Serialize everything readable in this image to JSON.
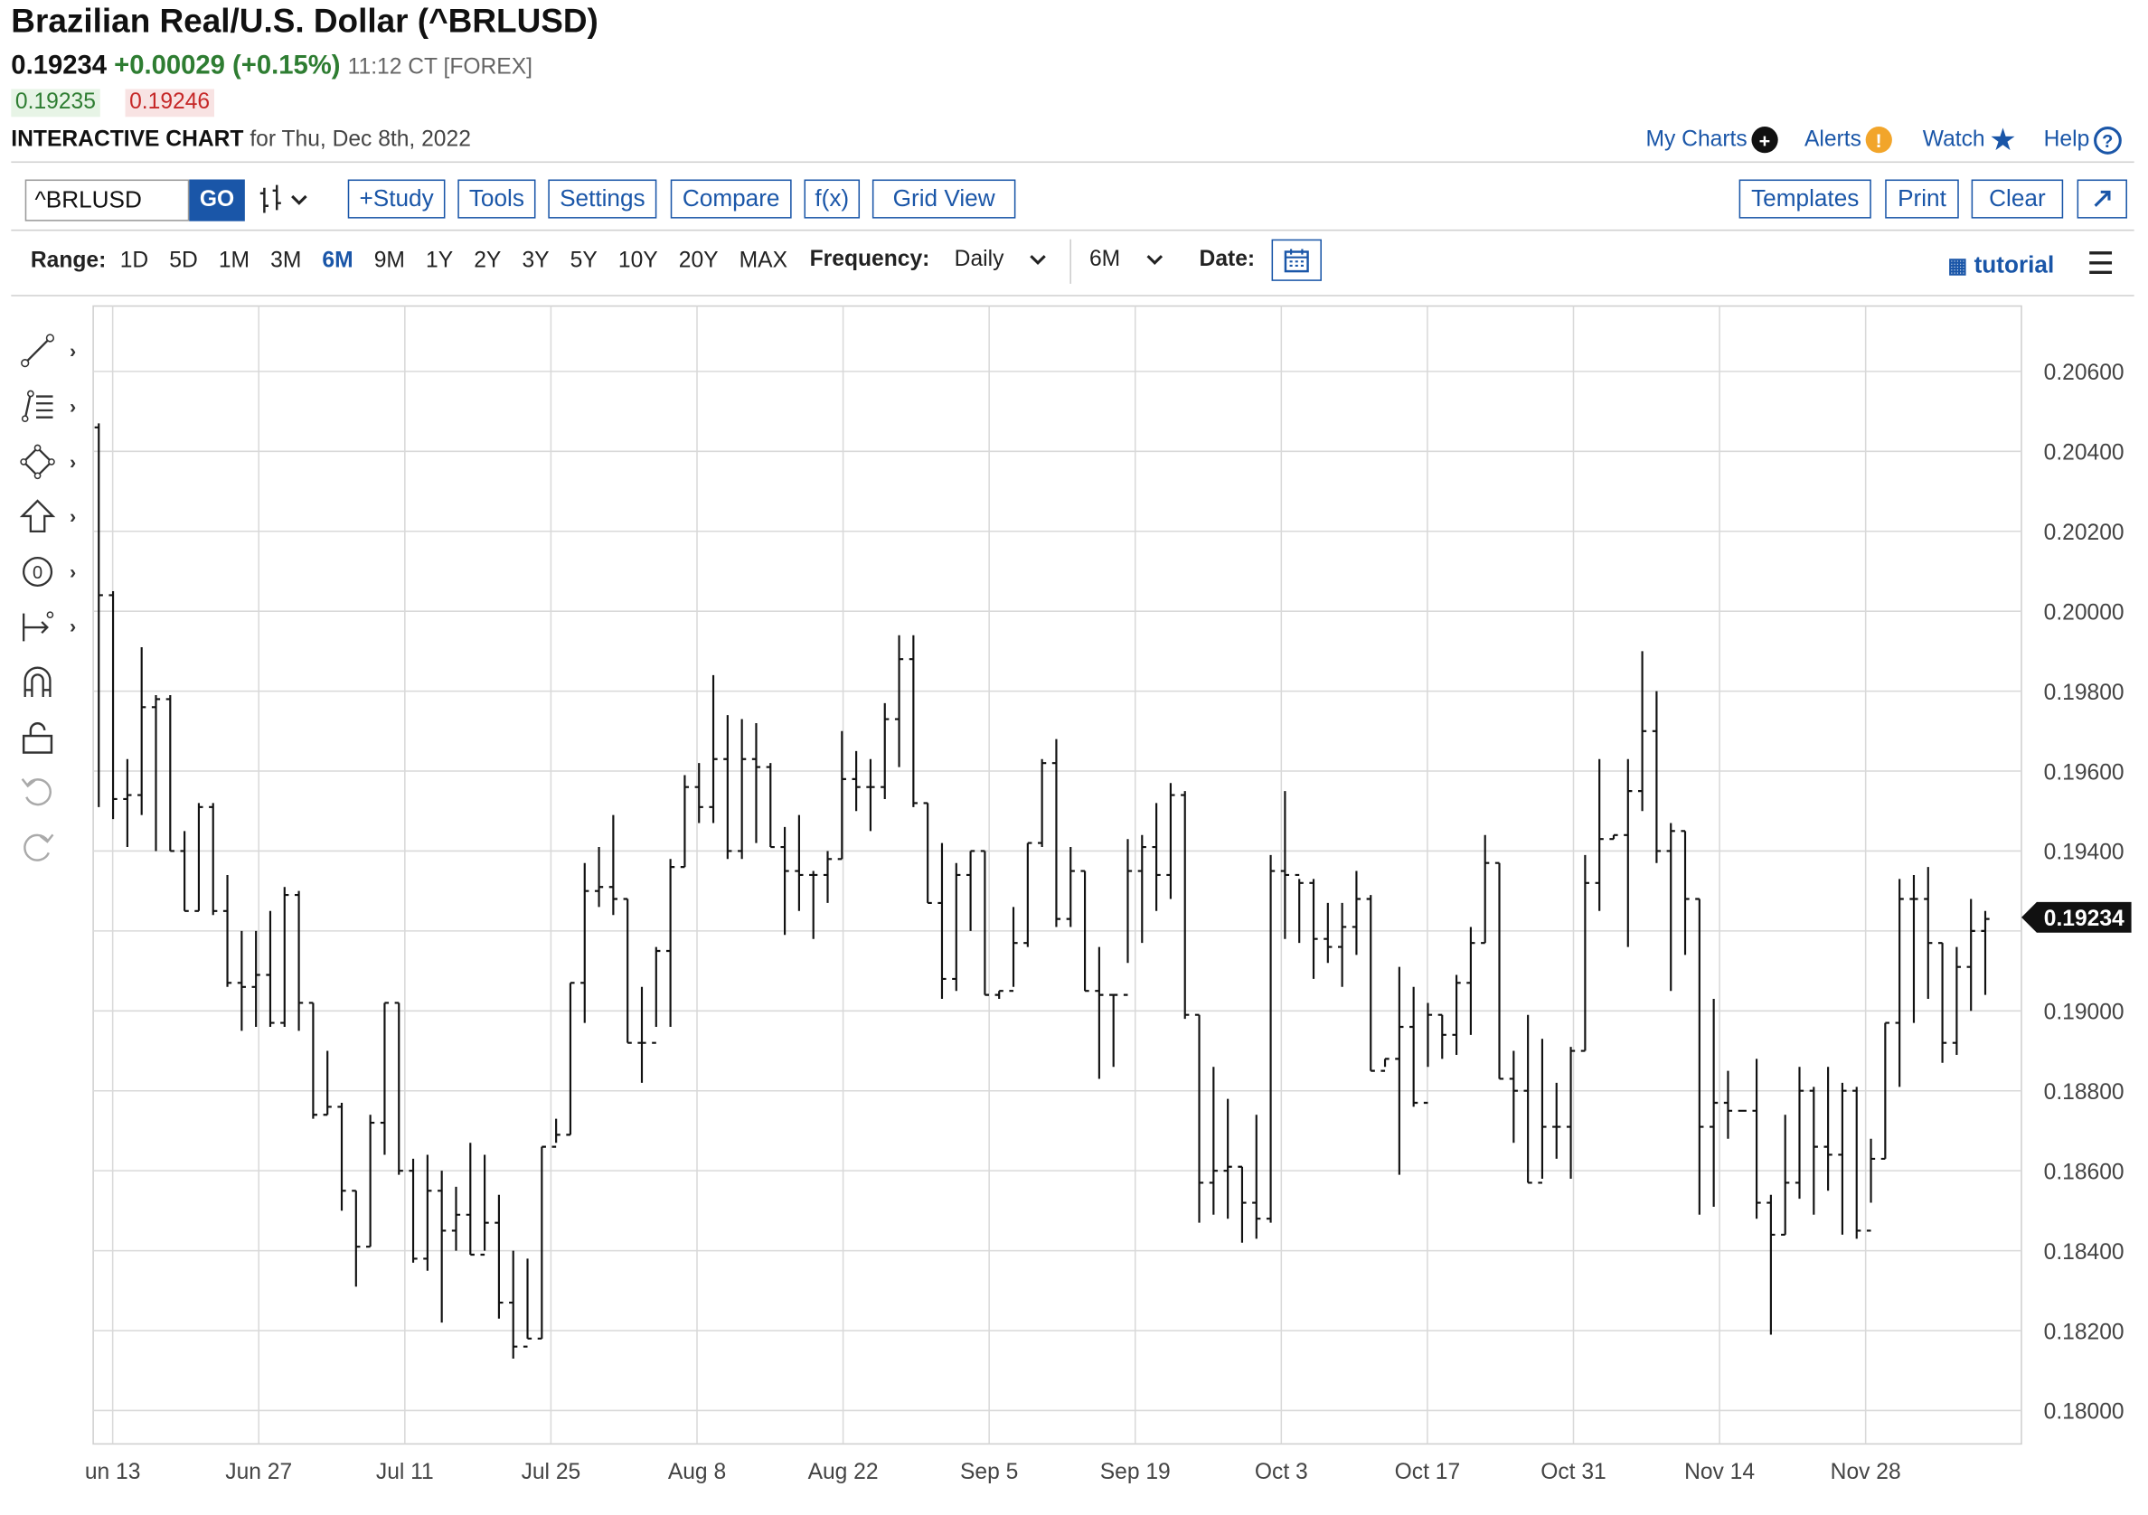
{
  "header": {
    "title": "Brazilian Real/U.S. Dollar (^BRLUSD)",
    "last": "0.19234",
    "change": "+0.00029 (+0.15%)",
    "time": "11:12 CT [FOREX]",
    "bid": "0.19235",
    "ask": "0.19246",
    "chart_label": "INTERACTIVE CHART",
    "chart_date": "for Thu, Dec 8th, 2022"
  },
  "top_links": {
    "my_charts": "My Charts",
    "alerts": "Alerts",
    "watch": "Watch",
    "help": "Help"
  },
  "toolbar": {
    "symbol_value": "^BRLUSD",
    "go": "GO",
    "study": "+Study",
    "tools": "Tools",
    "settings": "Settings",
    "compare": "Compare",
    "fx": "f(x)",
    "grid_view": "Grid View",
    "templates": "Templates",
    "print": "Print",
    "clear": "Clear",
    "expand_icon": "expand-icon"
  },
  "range": {
    "label": "Range:",
    "options": [
      "1D",
      "5D",
      "1M",
      "3M",
      "6M",
      "9M",
      "1Y",
      "2Y",
      "3Y",
      "5Y",
      "10Y",
      "20Y",
      "MAX"
    ],
    "selected": "6M",
    "frequency_label": "Frequency:",
    "frequency_value": "Daily",
    "period_value": "6M",
    "date_label": "Date:",
    "tutorial": "tutorial"
  },
  "left_tools": [
    "line-draw-icon",
    "fib-icon",
    "shape-icon",
    "arrow-up-icon",
    "number-icon",
    "measure-icon",
    "magnet-icon",
    "unlock-icon",
    "undo-icon",
    "redo-icon"
  ],
  "colors": {
    "accent": "#1a56a8",
    "positive": "#2e7d32",
    "negative": "#c62828",
    "bar": "#111111",
    "grid": "#d9d9d9"
  },
  "chart_data": {
    "type": "ohlc",
    "title": "Brazilian Real/U.S. Dollar (^BRLUSD)",
    "frequency": "Daily",
    "ylim": [
      0.1795,
      0.2077
    ],
    "y_ticks": [
      0.206,
      0.204,
      0.202,
      0.2,
      0.198,
      0.196,
      0.194,
      0.19,
      0.188,
      0.186,
      0.184,
      0.182,
      0.18
    ],
    "y_tick_labels": [
      "0.20600",
      "0.20400",
      "0.20200",
      "0.20000",
      "0.19800",
      "0.19600",
      "0.19400",
      "0.19000",
      "0.18800",
      "0.18600",
      "0.18400",
      "0.18200",
      "0.18000"
    ],
    "x_tick_labels": [
      "un 13",
      "Jun 27",
      "Jul 11",
      "Jul 25",
      "Aug 8",
      "Aug 22",
      "Sep 5",
      "Sep 19",
      "Oct 3",
      "Oct 17",
      "Oct 31",
      "Nov 14",
      "Nov 28"
    ],
    "last_value_label": "0.19234",
    "grid": true,
    "bars": [
      [
        0.2046,
        0.2047,
        0.1951,
        0.2004
      ],
      [
        0.2004,
        0.2005,
        0.1948,
        0.1953
      ],
      [
        0.1953,
        0.1963,
        0.1941,
        0.1954
      ],
      [
        0.1954,
        0.1991,
        0.1949,
        0.1976
      ],
      [
        0.1976,
        0.1979,
        0.194,
        0.1978
      ],
      [
        0.1978,
        0.1979,
        0.194,
        0.194
      ],
      [
        0.194,
        0.1945,
        0.1925,
        0.1925
      ],
      [
        0.1925,
        0.1952,
        0.1925,
        0.1951
      ],
      [
        0.1951,
        0.1952,
        0.1924,
        0.1925
      ],
      [
        0.1925,
        0.1934,
        0.1906,
        0.1907
      ],
      [
        0.1907,
        0.192,
        0.1895,
        0.1906
      ],
      [
        0.1906,
        0.192,
        0.1896,
        0.1909
      ],
      [
        0.1909,
        0.1925,
        0.1896,
        0.1897
      ],
      [
        0.1897,
        0.1931,
        0.1896,
        0.1929
      ],
      [
        0.1929,
        0.193,
        0.1895,
        0.1902
      ],
      [
        0.1902,
        0.1902,
        0.1873,
        0.1874
      ],
      [
        0.1874,
        0.189,
        0.1874,
        0.1876
      ],
      [
        0.1876,
        0.1877,
        0.185,
        0.1855
      ],
      [
        0.1855,
        0.1855,
        0.1831,
        0.1841
      ],
      [
        0.1841,
        0.1874,
        0.1841,
        0.1872
      ],
      [
        0.1872,
        0.1902,
        0.1864,
        0.1902
      ],
      [
        0.1902,
        0.1902,
        0.1859,
        0.186
      ],
      [
        0.186,
        0.1863,
        0.1837,
        0.1838
      ],
      [
        0.1838,
        0.1864,
        0.1835,
        0.1855
      ],
      [
        0.1855,
        0.186,
        0.1822,
        0.1845
      ],
      [
        0.1845,
        0.1856,
        0.184,
        0.1849
      ],
      [
        0.1849,
        0.1867,
        0.1839,
        0.1839
      ],
      [
        0.1839,
        0.1864,
        0.184,
        0.1847
      ],
      [
        0.1847,
        0.1854,
        0.1823,
        0.1827
      ],
      [
        0.1827,
        0.184,
        0.1813,
        0.1816
      ],
      [
        0.1816,
        0.1838,
        0.1818,
        0.1818
      ],
      [
        0.1818,
        0.1866,
        0.1818,
        0.1866
      ],
      [
        0.1866,
        0.1873,
        0.1867,
        0.1869
      ],
      [
        0.1869,
        0.1907,
        0.1869,
        0.1907
      ],
      [
        0.1907,
        0.1937,
        0.1897,
        0.193
      ],
      [
        0.193,
        0.1941,
        0.1926,
        0.1931
      ],
      [
        0.1931,
        0.1949,
        0.1924,
        0.1928
      ],
      [
        0.1928,
        0.1928,
        0.1892,
        0.1892
      ],
      [
        0.1892,
        0.1906,
        0.1882,
        0.1892
      ],
      [
        0.1892,
        0.1916,
        0.1896,
        0.1915
      ],
      [
        0.1915,
        0.1938,
        0.1896,
        0.1936
      ],
      [
        0.1936,
        0.1959,
        0.1936,
        0.1956
      ],
      [
        0.1956,
        0.1962,
        0.1947,
        0.1951
      ],
      [
        0.1951,
        0.1984,
        0.1947,
        0.1963
      ],
      [
        0.1963,
        0.1974,
        0.1938,
        0.194
      ],
      [
        0.194,
        0.1973,
        0.1938,
        0.1963
      ],
      [
        0.1963,
        0.1972,
        0.1942,
        0.1961
      ],
      [
        0.1961,
        0.1962,
        0.1941,
        0.1941
      ],
      [
        0.1941,
        0.1946,
        0.1919,
        0.1935
      ],
      [
        0.1935,
        0.1949,
        0.1925,
        0.1934
      ],
      [
        0.1934,
        0.1935,
        0.1918,
        0.1934
      ],
      [
        0.1934,
        0.194,
        0.1927,
        0.1938
      ],
      [
        0.1938,
        0.197,
        0.1938,
        0.1958
      ],
      [
        0.1958,
        0.1965,
        0.195,
        0.1956
      ],
      [
        0.1956,
        0.1963,
        0.1945,
        0.1956
      ],
      [
        0.1956,
        0.1977,
        0.1953,
        0.1973
      ],
      [
        0.1973,
        0.1994,
        0.1961,
        0.1988
      ],
      [
        0.1988,
        0.1994,
        0.1951,
        0.1952
      ],
      [
        0.1952,
        0.1952,
        0.1927,
        0.1927
      ],
      [
        0.1927,
        0.1942,
        0.1903,
        0.1908
      ],
      [
        0.1908,
        0.1937,
        0.1905,
        0.1934
      ],
      [
        0.1934,
        0.194,
        0.192,
        0.194
      ],
      [
        0.194,
        0.194,
        0.1904,
        0.1904
      ],
      [
        0.1904,
        0.1905,
        0.1903,
        0.1905
      ],
      [
        0.1905,
        0.1926,
        0.1906,
        0.1917
      ],
      [
        0.1917,
        0.1942,
        0.1916,
        0.1942
      ],
      [
        0.1942,
        0.1963,
        0.1941,
        0.1962
      ],
      [
        0.1962,
        0.1968,
        0.1921,
        0.1923
      ],
      [
        0.1923,
        0.1941,
        0.1921,
        0.1935
      ],
      [
        0.1935,
        0.1935,
        0.1905,
        0.1905
      ],
      [
        0.1905,
        0.1916,
        0.1883,
        0.1904
      ],
      [
        0.1904,
        0.1904,
        0.1886,
        0.1904
      ],
      [
        0.1904,
        0.1943,
        0.1912,
        0.1935
      ],
      [
        0.1935,
        0.1944,
        0.1917,
        0.1941
      ],
      [
        0.1941,
        0.1952,
        0.1925,
        0.1934
      ],
      [
        0.1934,
        0.1957,
        0.1928,
        0.1954
      ],
      [
        0.1954,
        0.1955,
        0.1898,
        0.1899
      ],
      [
        0.1899,
        0.1899,
        0.1847,
        0.1857
      ],
      [
        0.1857,
        0.1886,
        0.1849,
        0.186
      ],
      [
        0.186,
        0.1878,
        0.1848,
        0.1861
      ],
      [
        0.1861,
        0.1861,
        0.1842,
        0.1852
      ],
      [
        0.1852,
        0.1874,
        0.1843,
        0.1848
      ],
      [
        0.1848,
        0.1939,
        0.1847,
        0.1935
      ],
      [
        0.1935,
        0.1955,
        0.1918,
        0.1934
      ],
      [
        0.1934,
        0.1933,
        0.1917,
        0.1932
      ],
      [
        0.1932,
        0.1933,
        0.1908,
        0.1918
      ],
      [
        0.1918,
        0.1927,
        0.1912,
        0.1916
      ],
      [
        0.1916,
        0.1927,
        0.1906,
        0.1921
      ],
      [
        0.1921,
        0.1935,
        0.1914,
        0.1928
      ],
      [
        0.1928,
        0.1929,
        0.1885,
        0.1885
      ],
      [
        0.1885,
        0.1888,
        0.1886,
        0.1888
      ],
      [
        0.1888,
        0.1911,
        0.1859,
        0.1896
      ],
      [
        0.1896,
        0.1906,
        0.1876,
        0.1877
      ],
      [
        0.1877,
        0.1902,
        0.1886,
        0.1899
      ],
      [
        0.1899,
        0.1899,
        0.1888,
        0.1894
      ],
      [
        0.1894,
        0.1909,
        0.1889,
        0.1907
      ],
      [
        0.1907,
        0.1921,
        0.1894,
        0.1917
      ],
      [
        0.1917,
        0.1944,
        0.1917,
        0.1937
      ],
      [
        0.1937,
        0.1937,
        0.1883,
        0.1883
      ],
      [
        0.1883,
        0.189,
        0.1867,
        0.188
      ],
      [
        0.188,
        0.1899,
        0.1857,
        0.1857
      ],
      [
        0.1857,
        0.1893,
        0.1858,
        0.1871
      ],
      [
        0.1871,
        0.1882,
        0.1863,
        0.1871
      ],
      [
        0.1871,
        0.1891,
        0.1858,
        0.189
      ],
      [
        0.189,
        0.1939,
        0.189,
        0.1932
      ],
      [
        0.1932,
        0.1963,
        0.1925,
        0.1943
      ],
      [
        0.1943,
        0.1944,
        0.1943,
        0.1944
      ],
      [
        0.1944,
        0.1963,
        0.1916,
        0.1955
      ],
      [
        0.1955,
        0.199,
        0.195,
        0.197
      ],
      [
        0.197,
        0.198,
        0.1937,
        0.194
      ],
      [
        0.194,
        0.1947,
        0.1905,
        0.1945
      ],
      [
        0.1945,
        0.1945,
        0.1914,
        0.1928
      ],
      [
        0.1928,
        0.1928,
        0.1849,
        0.1871
      ],
      [
        0.1871,
        0.1903,
        0.1851,
        0.1877
      ],
      [
        0.1877,
        0.1885,
        0.1868,
        0.1875
      ],
      [
        0.1875,
        0.1875,
        0.1875,
        0.1875
      ],
      [
        0.1875,
        0.1888,
        0.1848,
        0.1852
      ],
      [
        0.1852,
        0.1854,
        0.1819,
        0.1844
      ],
      [
        0.1844,
        0.1874,
        0.1844,
        0.1857
      ],
      [
        0.1857,
        0.1886,
        0.1853,
        0.188
      ],
      [
        0.188,
        0.1881,
        0.1849,
        0.1866
      ],
      [
        0.1866,
        0.1886,
        0.1855,
        0.1864
      ],
      [
        0.1864,
        0.1882,
        0.1844,
        0.188
      ],
      [
        0.188,
        0.1881,
        0.1843,
        0.1845
      ],
      [
        0.1845,
        0.1868,
        0.1852,
        0.1863
      ],
      [
        0.1863,
        0.1897,
        0.1863,
        0.1897
      ],
      [
        0.1897,
        0.1933,
        0.1881,
        0.1928
      ],
      [
        0.1928,
        0.1934,
        0.1897,
        0.1928
      ],
      [
        0.1928,
        0.1936,
        0.1903,
        0.1917
      ],
      [
        0.1917,
        0.1917,
        0.1887,
        0.1892
      ],
      [
        0.1892,
        0.1916,
        0.1889,
        0.1911
      ],
      [
        0.1911,
        0.1928,
        0.19,
        0.192
      ],
      [
        0.192,
        0.1925,
        0.1904,
        0.1923
      ]
    ]
  }
}
